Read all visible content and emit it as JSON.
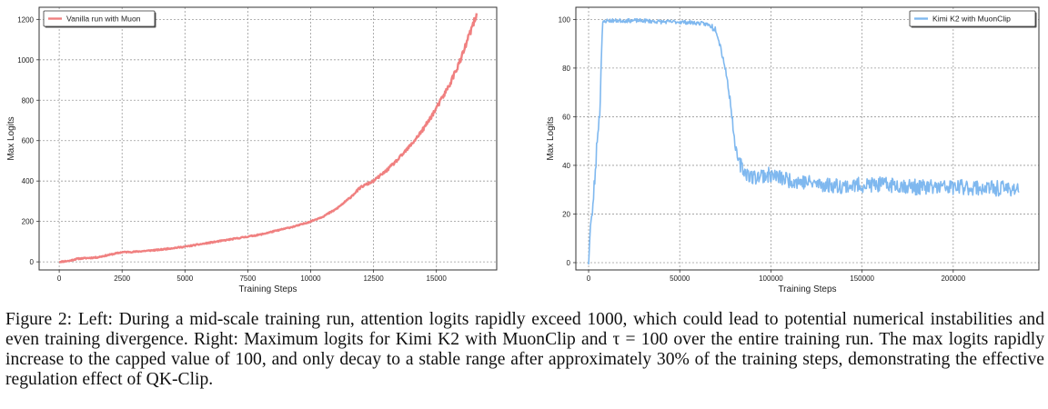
{
  "figure": {
    "caption": "Figure 2: Left: During a mid-scale training run, attention logits rapidly exceed 1000, which could lead to potential numerical instabilities and even training divergence. Right: Maximum logits for Kimi K2 with MuonClip and τ = 100 over the entire training run. The max logits rapidly increase to the capped value of 100, and only decay to a stable range after approximately 30% of the training steps, demonstrating the effective regulation effect of QK-Clip."
  },
  "chart_data": [
    {
      "type": "line",
      "xlabel": "Training Steps",
      "ylabel": "Max Logits",
      "xlim": [
        -800,
        17400
      ],
      "ylim": [
        -40,
        1260
      ],
      "xticks": [
        0,
        2500,
        5000,
        7500,
        10000,
        12500,
        15000
      ],
      "yticks": [
        0,
        200,
        400,
        600,
        800,
        1000,
        1200
      ],
      "grid": true,
      "legend": "top-left",
      "series": [
        {
          "name": "Vanilla run with Muon",
          "color": "#f08080",
          "x": [
            0,
            400,
            700,
            1000,
            1500,
            2000,
            2500,
            3000,
            3500,
            4000,
            4500,
            5000,
            5500,
            6000,
            6500,
            7000,
            7500,
            8000,
            8500,
            9000,
            9500,
            10000,
            10500,
            11000,
            11500,
            12000,
            12500,
            13000,
            13500,
            14000,
            14500,
            15000,
            15500,
            16000,
            16300,
            16600
          ],
          "y": [
            0,
            5,
            15,
            18,
            22,
            35,
            48,
            50,
            55,
            60,
            68,
            75,
            85,
            95,
            105,
            115,
            125,
            135,
            150,
            165,
            180,
            200,
            225,
            260,
            310,
            370,
            400,
            450,
            510,
            580,
            660,
            760,
            870,
            1010,
            1120,
            1220
          ]
        }
      ]
    },
    {
      "type": "line",
      "xlabel": "Training Steps",
      "ylabel": "Max Logits",
      "xlim": [
        -7000,
        247000
      ],
      "ylim": [
        -3,
        105
      ],
      "xticks": [
        0,
        50000,
        100000,
        150000,
        200000
      ],
      "yticks": [
        0,
        20,
        40,
        60,
        80,
        100
      ],
      "grid": true,
      "legend": "top-right",
      "series": [
        {
          "name": "Kimi K2 with MuonClip",
          "color": "#7fb8ef",
          "x": [
            0,
            1000,
            2000,
            3000,
            4000,
            5000,
            6000,
            7000,
            8000,
            10000,
            20000,
            30000,
            40000,
            50000,
            60000,
            65000,
            70000,
            72000,
            75000,
            78000,
            80000,
            82000,
            85000,
            90000,
            95000,
            100000,
            110000,
            120000,
            130000,
            140000,
            150000,
            160000,
            170000,
            180000,
            190000,
            200000,
            210000,
            220000,
            230000,
            236000
          ],
          "y": [
            0,
            15,
            20,
            30,
            42,
            55,
            60,
            85,
            99,
            99.5,
            99.5,
            99.5,
            99,
            99,
            98.5,
            98,
            96,
            90,
            80,
            65,
            50,
            42,
            38,
            35,
            36,
            36,
            34,
            33,
            32,
            31.5,
            32,
            32,
            32,
            31,
            31,
            31,
            31,
            30.5,
            30.5,
            30.5
          ]
        }
      ]
    }
  ]
}
